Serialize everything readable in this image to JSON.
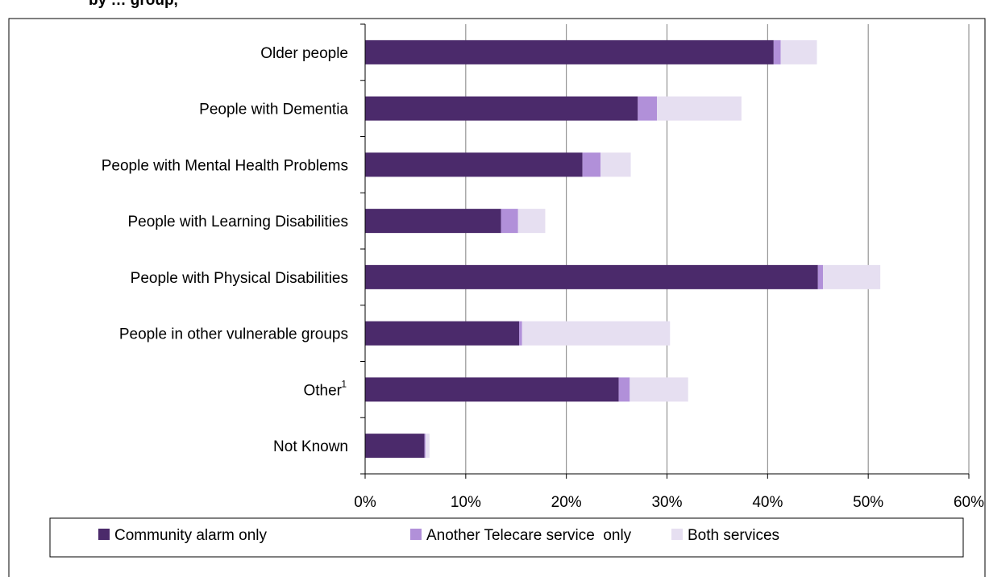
{
  "partial_title": "by … group,",
  "chart_data": {
    "type": "bar",
    "orientation": "horizontal",
    "stacked": true,
    "title": "",
    "xlabel": "",
    "ylabel": "",
    "categories": [
      "Older people",
      "People with Dementia",
      "People with Mental Health Problems",
      "People with Learning Disabilities",
      "People with Physical Disabilities",
      "People in other vulnerable groups",
      "Other",
      "Not Known"
    ],
    "category_superscripts": [
      "",
      "",
      "",
      "",
      "",
      "",
      "1",
      ""
    ],
    "series": [
      {
        "name": "Community alarm only",
        "color": "#4b2a6b",
        "values": [
          40.6,
          27.1,
          21.6,
          13.5,
          45.0,
          15.3,
          25.2,
          5.9
        ]
      },
      {
        "name": "Another Telecare service  only",
        "color": "#b190d9",
        "values": [
          0.7,
          1.9,
          1.8,
          1.7,
          0.5,
          0.3,
          1.1,
          0.1
        ]
      },
      {
        "name": "Both services",
        "color": "#e6dff1",
        "values": [
          3.6,
          8.4,
          3.0,
          2.7,
          5.7,
          14.7,
          5.8,
          0.4
        ]
      }
    ],
    "xlim": [
      0,
      60
    ],
    "xticks": [
      "0%",
      "10%",
      "20%",
      "30%",
      "40%",
      "50%",
      "60%"
    ],
    "xtick_values": [
      0,
      10,
      20,
      30,
      40,
      50,
      60
    ],
    "grid": "vertical",
    "legend_position": "bottom"
  }
}
